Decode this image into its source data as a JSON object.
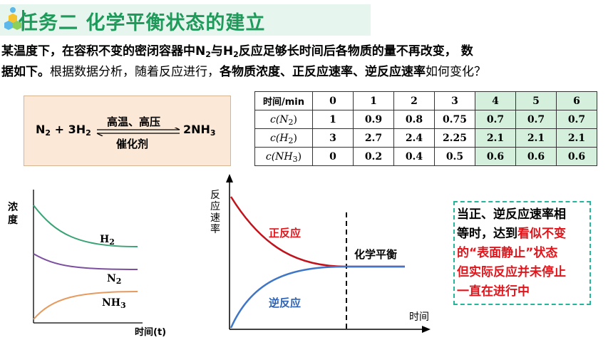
{
  "header": {
    "title": "任务二  化学平衡状态的建立"
  },
  "intro": {
    "part1": "某温度下，在容积不变的密闭容器中N",
    "sub_n2": "2",
    "part2": "与H",
    "sub_h2": "2",
    "part3": "反应足够长时间后各物质的量不再改变，  数",
    "part4": "据如下。",
    "part5": "根据数据分析，随着反应进行，",
    "part6": "各物质浓度、正反应速率、逆反应速率",
    "part7": "如何变化？"
  },
  "reaction": {
    "reactants": "N",
    "reactants_sub": "2",
    "plus": " + 3H",
    "plus_sub": "2",
    "condition_top": "高温、高压",
    "condition_bottom": "催化剂",
    "product": "2NH",
    "product_sub": "3"
  },
  "table": {
    "header_label": "时间/min",
    "times": [
      "0",
      "1",
      "2",
      "3",
      "4",
      "5",
      "6"
    ],
    "rows": [
      {
        "label": "c(N",
        "sub": "2",
        "label_end": ")",
        "values": [
          "1",
          "0.9",
          "0.8",
          "0.75",
          "0.7",
          "0.7",
          "0.7"
        ]
      },
      {
        "label": "c(H",
        "sub": "2",
        "label_end": ")",
        "values": [
          "3",
          "2.7",
          "2.4",
          "2.25",
          "2.1",
          "2.1",
          "2.1"
        ]
      },
      {
        "label": "c(NH",
        "sub": "3",
        "label_end": ")",
        "values": [
          "0",
          "0.2",
          "0.4",
          "0.5",
          "0.6",
          "0.6",
          "0.6"
        ]
      }
    ],
    "highlight_color": "#d4f0dc"
  },
  "conc_graph": {
    "ylabel": "浓度",
    "xlabel": "时间(t)",
    "curves": [
      {
        "name": "H",
        "sub": "2",
        "color": "#3aa375"
      },
      {
        "name": "N",
        "sub": "2",
        "color": "#7c4fa0"
      },
      {
        "name": "NH",
        "sub": "3",
        "color": "#e69a5e"
      }
    ]
  },
  "rate_graph": {
    "ylabel": "反应速率",
    "xlabel": "时间",
    "forward_label": "正反应",
    "reverse_label": "逆反应",
    "equilibrium_label": "化学平衡",
    "forward_color": "#c0141d",
    "reverse_color": "#3f76c7"
  },
  "note": {
    "line1": "当正、逆反应速率相",
    "line2a": "等时，达到",
    "line2b": "看似不变",
    "line3": "的“表面静止”状态",
    "line4": "但实际反应并未停止",
    "line5": "一直在进行中",
    "border_color": "#25b59a"
  },
  "colors": {
    "title_green": "#1f9a5a",
    "accent_red": "#e0151b"
  }
}
